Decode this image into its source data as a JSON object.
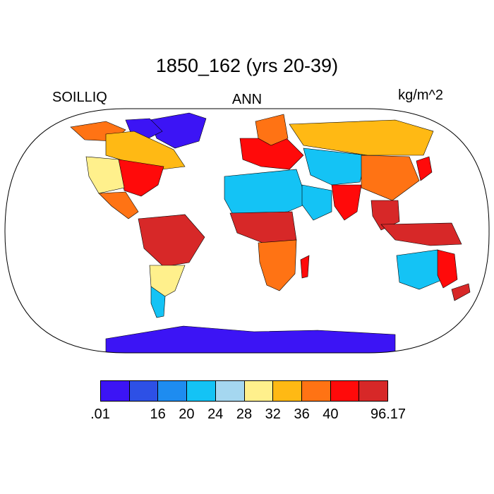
{
  "title": "1850_162 (yrs 20-39)",
  "left_label": "SOILLIQ",
  "center_label": "ANN",
  "units": "kg/m^2",
  "colorbar": {
    "colors": [
      "#3c14f5",
      "#2d50e6",
      "#1e8cf0",
      "#14c3f5",
      "#a5d7f0",
      "#fff08c",
      "#ffb914",
      "#ff7314",
      "#ff0a0a",
      "#d72828"
    ],
    "tick_labels": [
      ".01",
      "16",
      "20",
      "24",
      "28",
      "32",
      "36",
      "40",
      "96.17"
    ],
    "tick_edges": [
      0,
      2,
      3,
      4,
      5,
      6,
      7,
      8,
      10
    ]
  },
  "map": {
    "projection": "Robinson",
    "regions": [
      {
        "name": "Greenland",
        "class": 0
      },
      {
        "name": "Canada Arctic",
        "class": 0
      },
      {
        "name": "Alaska",
        "class": 7
      },
      {
        "name": "Canada",
        "class": 6
      },
      {
        "name": "United States East",
        "class": 8
      },
      {
        "name": "United States West",
        "class": 5
      },
      {
        "name": "Mexico",
        "class": 7
      },
      {
        "name": "Amazon",
        "class": 9
      },
      {
        "name": "South America South",
        "class": 5
      },
      {
        "name": "Patagonia",
        "class": 3
      },
      {
        "name": "Europe",
        "class": 8
      },
      {
        "name": "Scandinavia",
        "class": 7
      },
      {
        "name": "Sahara",
        "class": 3
      },
      {
        "name": "Arabia",
        "class": 3
      },
      {
        "name": "Central Africa",
        "class": 9
      },
      {
        "name": "Southern Africa",
        "class": 7
      },
      {
        "name": "Madagascar",
        "class": 8
      },
      {
        "name": "Siberia",
        "class": 6
      },
      {
        "name": "Central Asia",
        "class": 3
      },
      {
        "name": "India",
        "class": 8
      },
      {
        "name": "China",
        "class": 7
      },
      {
        "name": "Southeast Asia",
        "class": 9
      },
      {
        "name": "Indonesia",
        "class": 9
      },
      {
        "name": "Japan",
        "class": 8
      },
      {
        "name": "Australia Interior",
        "class": 3
      },
      {
        "name": "Australia East",
        "class": 8
      },
      {
        "name": "New Zealand",
        "class": 9
      },
      {
        "name": "Antarctica",
        "class": 0
      }
    ]
  }
}
